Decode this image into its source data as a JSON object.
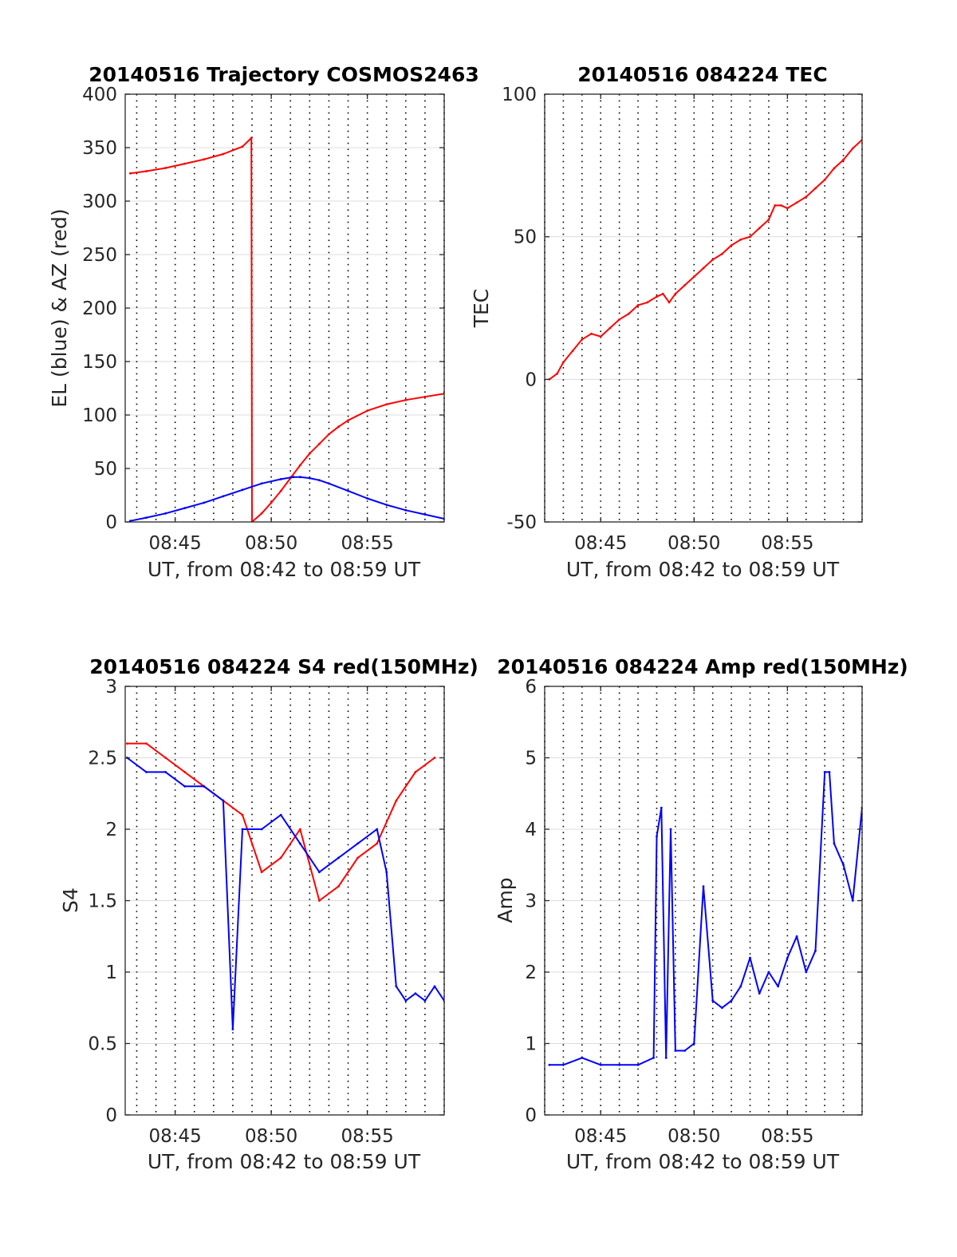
{
  "figure": {
    "background": "#ffffff",
    "line_colors": {
      "red": "#ff0000",
      "blue": "#0000ff"
    }
  },
  "chart_data": [
    {
      "id": "trajectory",
      "type": "line",
      "title": "20140516 Trajectory COSMOS2463",
      "xlabel": "UT, from 08:42 to 08:59 UT",
      "ylabel": "EL (blue) & AZ (red)",
      "xlim": [
        "08:42:24",
        "08:59:00"
      ],
      "ylim": [
        0,
        400
      ],
      "xticks": [
        "08:45",
        "08:50",
        "08:55"
      ],
      "yticks": [
        0,
        50,
        100,
        150,
        200,
        250,
        300,
        350,
        400
      ],
      "grid": "dotted vertical every minute, light horizontal",
      "series": [
        {
          "color": "#ff0000",
          "x": [
            "08:42:40",
            "08:43:30",
            "08:44:30",
            "08:45:30",
            "08:46:30",
            "08:47:30",
            "08:48:30",
            "08:48:58",
            "08:49:00",
            "08:49:30",
            "08:50:00",
            "08:50:30",
            "08:51:00",
            "08:51:30",
            "08:52:00",
            "08:52:30",
            "08:53:00",
            "08:53:30",
            "08:54:00",
            "08:55:00",
            "08:56:00",
            "08:57:00",
            "08:58:00",
            "08:59:00"
          ],
          "values": [
            326,
            328,
            331,
            335,
            339,
            344,
            351,
            359,
            0,
            8,
            18,
            29,
            41,
            53,
            64,
            73,
            82,
            89,
            95,
            104,
            110,
            114,
            117,
            120
          ]
        },
        {
          "color": "#0000ff",
          "x": [
            "08:42:40",
            "08:43:30",
            "08:44:30",
            "08:45:30",
            "08:46:30",
            "08:47:30",
            "08:48:30",
            "08:49:30",
            "08:50:30",
            "08:51:10",
            "08:51:30",
            "08:52:00",
            "08:52:30",
            "08:53:00",
            "08:54:00",
            "08:55:00",
            "08:56:00",
            "08:57:00",
            "08:58:00",
            "08:59:00"
          ],
          "values": [
            1,
            4,
            8,
            13,
            18,
            24,
            30,
            36,
            40,
            42,
            42,
            41,
            39,
            36,
            29,
            22,
            16,
            11,
            7,
            3
          ]
        }
      ]
    },
    {
      "id": "tec",
      "type": "line",
      "title": "20140516 084224 TEC",
      "xlabel": "UT, from 08:42 to 08:59 UT",
      "ylabel": "TEC",
      "xlim": [
        "08:42:00",
        "08:59:00"
      ],
      "ylim": [
        -50,
        100
      ],
      "xticks": [
        "08:45",
        "08:50",
        "08:55"
      ],
      "yticks": [
        -50,
        0,
        50,
        100
      ],
      "grid": "dotted vertical every minute, light horizontal",
      "series": [
        {
          "color": "#ff0000",
          "x": [
            "08:42:15",
            "08:42:40",
            "08:43:00",
            "08:43:30",
            "08:44:00",
            "08:44:30",
            "08:45:00",
            "08:45:30",
            "08:46:00",
            "08:46:30",
            "08:47:00",
            "08:47:30",
            "08:48:00",
            "08:48:20",
            "08:48:40",
            "08:49:00",
            "08:49:30",
            "08:50:00",
            "08:50:30",
            "08:51:00",
            "08:51:30",
            "08:52:00",
            "08:52:30",
            "08:53:00",
            "08:53:30",
            "08:54:00",
            "08:54:20",
            "08:54:40",
            "08:55:00",
            "08:55:30",
            "08:56:00",
            "08:56:30",
            "08:57:00",
            "08:57:30",
            "08:58:00",
            "08:58:30",
            "08:59:00"
          ],
          "values": [
            0,
            2,
            6,
            10,
            14,
            16,
            15,
            18,
            21,
            23,
            26,
            27,
            29,
            30,
            27,
            30,
            33,
            36,
            39,
            42,
            44,
            47,
            49,
            50,
            53,
            56,
            61,
            61,
            60,
            62,
            64,
            67,
            70,
            74,
            77,
            81,
            84
          ]
        }
      ]
    },
    {
      "id": "s4",
      "type": "line",
      "title": "20140516 084224 S4 red(150MHz)",
      "xlabel": "UT, from 08:42 to 08:59 UT",
      "ylabel": "S4",
      "xlim": [
        "08:42:24",
        "08:59:00"
      ],
      "ylim": [
        0,
        3
      ],
      "xticks": [
        "08:45",
        "08:50",
        "08:55"
      ],
      "yticks": [
        0,
        0.5,
        1,
        1.5,
        2,
        2.5,
        3
      ],
      "grid": "dotted vertical every minute, light horizontal",
      "series": [
        {
          "color": "#ff0000",
          "x": [
            "08:42:30",
            "08:43:30",
            "08:44:30",
            "08:45:30",
            "08:46:30",
            "08:47:30",
            "08:48:30",
            "08:49:30",
            "08:50:30",
            "08:51:30",
            "08:52:30",
            "08:53:30",
            "08:54:30",
            "08:55:30",
            "08:56:30",
            "08:57:30",
            "08:58:30"
          ],
          "values": [
            2.6,
            2.6,
            2.5,
            2.4,
            2.3,
            2.2,
            2.1,
            1.7,
            1.8,
            2.0,
            1.5,
            1.6,
            1.8,
            1.9,
            2.2,
            2.4,
            2.5
          ]
        },
        {
          "color": "#0000ff",
          "x": [
            "08:42:30",
            "08:43:30",
            "08:44:30",
            "08:45:30",
            "08:46:30",
            "08:47:30",
            "08:48:00",
            "08:48:30",
            "08:49:30",
            "08:50:30",
            "08:51:30",
            "08:52:30",
            "08:53:30",
            "08:54:30",
            "08:55:30",
            "08:56:00",
            "08:56:30",
            "08:57:00",
            "08:57:30",
            "08:58:00",
            "08:58:30",
            "08:59:00"
          ],
          "values": [
            2.5,
            2.4,
            2.4,
            2.3,
            2.3,
            2.2,
            0.6,
            2.0,
            2.0,
            2.1,
            1.9,
            1.7,
            1.8,
            1.9,
            2.0,
            1.7,
            0.9,
            0.8,
            0.85,
            0.8,
            0.9,
            0.8
          ]
        }
      ]
    },
    {
      "id": "amp",
      "type": "line",
      "title": "20140516 084224 Amp red(150MHz)",
      "xlabel": "UT, from 08:42 to 08:59 UT",
      "ylabel": "Amp",
      "xlim": [
        "08:42:00",
        "08:59:00"
      ],
      "ylim": [
        0,
        6
      ],
      "xticks": [
        "08:45",
        "08:50",
        "08:55"
      ],
      "yticks": [
        0,
        1,
        2,
        3,
        4,
        5,
        6
      ],
      "grid": "dotted vertical every minute, light horizontal",
      "series": [
        {
          "color": "#0000ff",
          "x": [
            "08:42:15",
            "08:43:00",
            "08:44:00",
            "08:45:00",
            "08:46:00",
            "08:47:00",
            "08:47:50",
            "08:48:00",
            "08:48:15",
            "08:48:30",
            "08:48:45",
            "08:49:00",
            "08:49:30",
            "08:50:00",
            "08:50:30",
            "08:51:00",
            "08:51:30",
            "08:52:00",
            "08:52:30",
            "08:53:00",
            "08:53:30",
            "08:54:00",
            "08:54:30",
            "08:55:00",
            "08:55:30",
            "08:56:00",
            "08:56:30",
            "08:57:00",
            "08:57:15",
            "08:57:30",
            "08:58:00",
            "08:58:30",
            "08:59:00"
          ],
          "values": [
            0.7,
            0.7,
            0.8,
            0.7,
            0.7,
            0.7,
            0.8,
            3.9,
            4.3,
            0.8,
            4.0,
            0.9,
            0.9,
            1.0,
            3.2,
            1.6,
            1.5,
            1.6,
            1.8,
            2.2,
            1.7,
            2.0,
            1.8,
            2.2,
            2.5,
            2.0,
            2.3,
            4.8,
            4.8,
            3.8,
            3.5,
            3.0,
            4.3
          ]
        }
      ]
    }
  ]
}
